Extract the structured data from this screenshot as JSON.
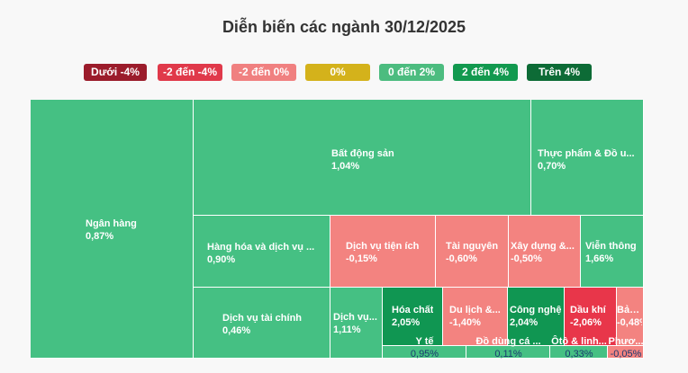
{
  "title": "Diễn biến các ngành 30/12/2025",
  "legend": [
    {
      "label": "Dưới -4%",
      "color": "#9b1c2b"
    },
    {
      "label": "-2 đến -4%",
      "color": "#e0394a"
    },
    {
      "label": "-2 đến 0%",
      "color": "#f08080"
    },
    {
      "label": "0%",
      "color": "#d4b21b"
    },
    {
      "label": "0 đến 2%",
      "color": "#4cbc7f"
    },
    {
      "label": "2 đến 4%",
      "color": "#12994f"
    },
    {
      "label": "Trên 4%",
      "color": "#0d6b36"
    }
  ],
  "chart_data": {
    "type": "treemap",
    "title": "Diễn biến các ngành 30/12/2025",
    "items": [
      {
        "name": "Ngân hàng",
        "change": "0,87%",
        "value": 0.87,
        "color": "#45c083"
      },
      {
        "name": "Bất động sản",
        "change": "1,04%",
        "value": 1.04,
        "color": "#45c083"
      },
      {
        "name": "Thực phẩm & Đồ u...",
        "change": "0,70%",
        "value": 0.7,
        "color": "#45c083"
      },
      {
        "name": "Hàng hóa và dịch vụ ...",
        "change": "0,90%",
        "value": 0.9,
        "color": "#45c083"
      },
      {
        "name": "Dịch vụ tiện ích",
        "change": "-0,15%",
        "value": -0.15,
        "color": "#f38380"
      },
      {
        "name": "Tài nguyên",
        "change": "-0,60%",
        "value": -0.6,
        "color": "#f38380"
      },
      {
        "name": "Xây dựng &...",
        "change": "-0,50%",
        "value": -0.5,
        "color": "#f38380"
      },
      {
        "name": "Viễn thông",
        "change": "1,66%",
        "value": 1.66,
        "color": "#45c083"
      },
      {
        "name": "Dịch vụ tài chính",
        "change": "0,46%",
        "value": 0.46,
        "color": "#45c083"
      },
      {
        "name": "Dịch vụ...",
        "change": "1,11%",
        "value": 1.11,
        "color": "#45c083"
      },
      {
        "name": "Hóa chất",
        "change": "2,05%",
        "value": 2.05,
        "color": "#109652"
      },
      {
        "name": "Du lịch &...",
        "change": "-1,40%",
        "value": -1.4,
        "color": "#f38380"
      },
      {
        "name": "Công nghệ",
        "change": "2,04%",
        "value": 2.04,
        "color": "#109652"
      },
      {
        "name": "Dầu khí",
        "change": "-2,06%",
        "value": -2.06,
        "color": "#e8364a"
      },
      {
        "name": "Bảo...",
        "change": "-0,48%",
        "value": -0.48,
        "color": "#f38380"
      },
      {
        "name": "Y tế",
        "change": "0,95%",
        "value": 0.95,
        "color": "#45c083"
      },
      {
        "name": "Đồ dùng cá ...",
        "change": "0,11%",
        "value": 0.11,
        "color": "#45c083"
      },
      {
        "name": "Ôtô & linh...",
        "change": "0,33%",
        "value": 0.33,
        "color": "#45c083"
      },
      {
        "name": "Phươ...",
        "change": "-0,05%",
        "value": -0.05,
        "color": "#f38380"
      }
    ]
  }
}
